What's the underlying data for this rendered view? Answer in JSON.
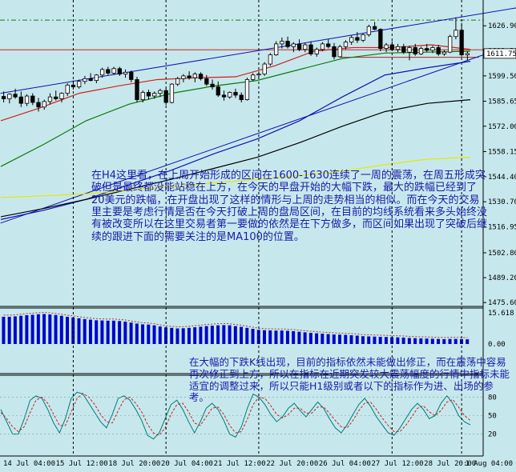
{
  "chart_data": [
    {
      "type": "candlestick",
      "price_axis": {
        "ylim": [
          1473.5,
          1641
        ],
        "ticks": [
          "1626.90",
          "1613.20",
          "1599.50",
          "1585.65",
          "1572.00",
          "1558.15",
          "1544.40",
          "1530.70",
          "1516.95",
          "1502.80",
          "1489.20",
          "1475.60"
        ],
        "current_price": "1611.75"
      },
      "time_axis": {
        "labels": [
          "14 Jul 04:00",
          "15 Jul 12:00",
          "18 Jul 20:00",
          "20 Jul 04:00",
          "21 Jul 12:00",
          "22 Jul 20:00",
          "26 Jul 04:00",
          "27 Jul 12:00",
          "28 Jul 20:00",
          "1 Aug 04:00"
        ]
      },
      "candles": [
        [
          1588.3,
          1591.0,
          1585.0,
          1587.0
        ],
        [
          1587.0,
          1590.0,
          1584.5,
          1589.5
        ],
        [
          1589.5,
          1592.5,
          1587.0,
          1588.0
        ],
        [
          1588.0,
          1591.0,
          1582.5,
          1584.5
        ],
        [
          1584.5,
          1589.5,
          1583.0,
          1588.5
        ],
        [
          1588.5,
          1590.0,
          1583.5,
          1585.0
        ],
        [
          1585.0,
          1587.5,
          1580.0,
          1582.5
        ],
        [
          1582.5,
          1586.5,
          1581.0,
          1585.5
        ],
        [
          1585.5,
          1590.0,
          1584.0,
          1588.0
        ],
        [
          1588.0,
          1591.5,
          1586.0,
          1587.0
        ],
        [
          1587.0,
          1590.5,
          1585.0,
          1590.0
        ],
        [
          1590.0,
          1595.5,
          1588.5,
          1594.5
        ],
        [
          1594.5,
          1597.0,
          1592.0,
          1593.5
        ],
        [
          1593.5,
          1597.5,
          1592.5,
          1596.5
        ],
        [
          1596.5,
          1599.5,
          1595.0,
          1598.0
        ],
        [
          1598.0,
          1601.0,
          1596.5,
          1597.0
        ],
        [
          1597.0,
          1600.5,
          1595.5,
          1600.0
        ],
        [
          1600.0,
          1604.0,
          1598.5,
          1603.0
        ],
        [
          1603.0,
          1604.5,
          1600.0,
          1601.0
        ],
        [
          1601.0,
          1604.5,
          1600.0,
          1603.5
        ],
        [
          1603.5,
          1604.5,
          1599.5,
          1600.5
        ],
        [
          1600.5,
          1603.0,
          1598.5,
          1601.5
        ],
        [
          1601.5,
          1602.5,
          1596.0,
          1597.5
        ],
        [
          1597.5,
          1599.0,
          1585.0,
          1586.5
        ],
        [
          1586.5,
          1591.5,
          1585.0,
          1590.5
        ],
        [
          1590.5,
          1592.0,
          1586.5,
          1588.5
        ],
        [
          1588.5,
          1591.0,
          1587.0,
          1590.0
        ],
        [
          1590.0,
          1592.5,
          1588.0,
          1591.5
        ],
        [
          1591.5,
          1593.0,
          1583.5,
          1585.0
        ],
        [
          1585.0,
          1595.5,
          1584.5,
          1595.0
        ],
        [
          1595.0,
          1599.0,
          1594.0,
          1598.0
        ],
        [
          1598.0,
          1600.5,
          1596.0,
          1599.5
        ],
        [
          1599.5,
          1602.0,
          1597.5,
          1598.5
        ],
        [
          1598.5,
          1601.5,
          1596.0,
          1600.5
        ],
        [
          1600.5,
          1601.5,
          1597.0,
          1598.0
        ],
        [
          1598.0,
          1600.0,
          1594.0,
          1595.0
        ],
        [
          1595.0,
          1597.5,
          1592.0,
          1593.5
        ],
        [
          1593.5,
          1596.5,
          1588.0,
          1589.0
        ],
        [
          1589.0,
          1591.5,
          1586.0,
          1588.0
        ],
        [
          1588.0,
          1591.0,
          1587.0,
          1590.5
        ],
        [
          1590.5,
          1592.5,
          1587.5,
          1589.0
        ],
        [
          1589.0,
          1590.5,
          1585.0,
          1586.5
        ],
        [
          1586.5,
          1598.5,
          1586.0,
          1597.5
        ],
        [
          1597.5,
          1601.0,
          1596.5,
          1600.0
        ],
        [
          1600.0,
          1602.0,
          1598.0,
          1600.5
        ],
        [
          1600.5,
          1607.0,
          1599.5,
          1606.0
        ],
        [
          1606.0,
          1612.0,
          1605.0,
          1611.0
        ],
        [
          1611.0,
          1618.5,
          1610.5,
          1617.0
        ],
        [
          1617.0,
          1620.5,
          1614.5,
          1618.5
        ],
        [
          1618.5,
          1621.0,
          1614.5,
          1615.5
        ],
        [
          1615.5,
          1618.0,
          1612.5,
          1617.0
        ],
        [
          1617.0,
          1619.5,
          1613.0,
          1614.0
        ],
        [
          1614.0,
          1617.5,
          1612.5,
          1616.5
        ],
        [
          1616.5,
          1618.5,
          1610.5,
          1611.5
        ],
        [
          1611.5,
          1615.0,
          1610.0,
          1614.0
        ],
        [
          1614.0,
          1618.0,
          1613.0,
          1617.0
        ],
        [
          1617.0,
          1619.5,
          1614.5,
          1615.5
        ],
        [
          1615.5,
          1617.5,
          1608.5,
          1610.0
        ],
        [
          1610.0,
          1616.5,
          1609.5,
          1615.5
        ],
        [
          1615.5,
          1619.0,
          1614.0,
          1618.0
        ],
        [
          1618.0,
          1621.5,
          1616.5,
          1620.5
        ],
        [
          1620.5,
          1623.5,
          1617.5,
          1619.0
        ],
        [
          1619.0,
          1622.5,
          1618.0,
          1622.0
        ],
        [
          1622.0,
          1627.5,
          1621.0,
          1626.5
        ],
        [
          1626.5,
          1629.0,
          1624.5,
          1625.0
        ],
        [
          1625.0,
          1625.5,
          1613.0,
          1614.5
        ],
        [
          1614.5,
          1617.5,
          1612.5,
          1616.5
        ],
        [
          1616.5,
          1618.5,
          1613.0,
          1614.0
        ],
        [
          1614.0,
          1617.0,
          1612.5,
          1615.5
        ],
        [
          1615.5,
          1617.0,
          1611.5,
          1612.5
        ],
        [
          1612.5,
          1616.0,
          1608.0,
          1615.0
        ],
        [
          1615.0,
          1617.0,
          1610.5,
          1611.5
        ],
        [
          1611.5,
          1615.5,
          1611.0,
          1614.5
        ],
        [
          1614.5,
          1617.0,
          1612.5,
          1613.5
        ],
        [
          1613.5,
          1616.0,
          1612.0,
          1615.0
        ],
        [
          1615.0,
          1616.5,
          1610.5,
          1611.5
        ],
        [
          1611.5,
          1613.5,
          1610.5,
          1612.5
        ],
        [
          1612.5,
          1622.0,
          1612.0,
          1621.0
        ],
        [
          1621.0,
          1631.5,
          1619.5,
          1624.5
        ],
        [
          1624.5,
          1628.5,
          1610.0,
          1611.0
        ],
        [
          1611.0,
          1613.0,
          1608.0,
          1611.75
        ]
      ],
      "moving_averages": [
        {
          "color": "#d81c1c",
          "values": [
            1575.0,
            1582.0,
            1590.0,
            1594.0,
            1597.5,
            1598.5,
            1599.0,
            1605.0,
            1613.0,
            1615.0,
            1615.0,
            1616.5,
            1614.0
          ]
        },
        {
          "color": "#0a7a0a",
          "values": [
            1550.0,
            1562.0,
            1575.0,
            1584.0,
            1590.0,
            1594.0,
            1597.0,
            1603.0,
            1609.0,
            1612.0,
            1612.5,
            1613.0
          ]
        },
        {
          "color": "#1010b8",
          "values": [
            1521.0,
            1526.0,
            1532.0,
            1540.0,
            1548.0,
            1557.0,
            1565.0,
            1575.0,
            1588.0,
            1600.0,
            1604.0,
            1607.5
          ]
        },
        {
          "color": "#000000",
          "values": [
            1522.5,
            1527.0,
            1532.0,
            1537.5,
            1543.0,
            1549.0,
            1555.0,
            1563.0,
            1572.0,
            1580.0,
            1584.5,
            1586.5
          ]
        },
        {
          "color": "#e6e600",
          "values": [
            1533.0,
            1534.0,
            1535.0,
            1537.0,
            1539.0,
            1541.0,
            1543.0,
            1545.0,
            1547.5,
            1551.0,
            1554.0,
            1555.0
          ]
        }
      ],
      "trend_lines": [
        {
          "color": "#1010b8",
          "from": [
            0,
            1590.0
          ],
          "to": [
            110,
            1648.0
          ]
        },
        {
          "color": "#1010b8",
          "from": [
            0,
            1519.0
          ],
          "to": [
            85,
            1613.5
          ]
        }
      ],
      "horizontal_lines": [
        {
          "style": "dash-dot",
          "color": "#1a7a1a",
          "price": 1630.0
        },
        {
          "style": "dash-dot",
          "color": "#cc2222",
          "price": 1642.0
        },
        {
          "style": "solid",
          "color": "#cc2222",
          "price": 1613.8
        },
        {
          "style": "solid",
          "color": "#b82222",
          "price": 1609.7,
          "from_index": 58,
          "to_index": 82
        }
      ],
      "vertical_marker_indices": [
        12,
        28,
        44,
        67,
        79
      ]
    },
    {
      "type": "bar",
      "indicator_axis": {
        "max_label": "15.618",
        "zero_label": "0.00"
      },
      "values": [
        14.0,
        14.0,
        14.2,
        14.5,
        14.8,
        15.0,
        15.3,
        15.4,
        15.2,
        14.9,
        14.5,
        14.0,
        13.6,
        13.2,
        12.8,
        12.5,
        12.2,
        12.1,
        12.0,
        12.0,
        11.8,
        11.5,
        11.0,
        10.5,
        10.1,
        10.0,
        9.6,
        9.0,
        8.5,
        8.3,
        8.0,
        8.1,
        8.3,
        8.6,
        8.9,
        9.2,
        9.4,
        9.6,
        9.7,
        9.6,
        9.2,
        8.8,
        8.3,
        7.8,
        7.3,
        7.1,
        7.0,
        6.9,
        6.9,
        6.8,
        6.6,
        6.3,
        6.0,
        5.7,
        5.5,
        5.3,
        5.1,
        4.9,
        4.8,
        4.7,
        4.5,
        4.3,
        4.0,
        3.9,
        3.8,
        3.7,
        3.6,
        3.5,
        3.4,
        3.3,
        3.1,
        3.0,
        2.9,
        2.8,
        2.7,
        2.6,
        2.5,
        2.6,
        2.6,
        2.5,
        2.4
      ],
      "signal_color": "#c03030"
    },
    {
      "type": "line",
      "indicator_axis": {
        "ticks": [
          "80",
          "50",
          "20"
        ]
      },
      "series": [
        {
          "color": "#007a7a",
          "values": [
            60,
            40,
            20,
            20,
            45,
            75,
            82,
            78,
            60,
            38,
            22,
            45,
            78,
            88,
            85,
            70,
            55,
            40,
            30,
            52,
            78,
            82,
            75,
            60,
            42,
            18,
            12,
            22,
            45,
            68,
            75,
            60,
            40,
            22,
            40,
            62,
            70,
            60,
            42,
            20,
            15,
            32,
            62,
            85,
            80,
            68,
            52,
            40,
            48,
            62,
            70,
            58,
            48,
            60,
            72,
            62,
            45,
            30,
            22,
            35,
            52,
            68,
            78,
            65,
            48,
            35,
            22,
            18,
            30,
            45,
            60,
            70,
            60,
            45,
            50,
            70,
            82,
            70,
            50,
            40,
            35
          ]
        },
        {
          "color": "#cc2020",
          "values": [
            55,
            45,
            32,
            24,
            32,
            55,
            75,
            80,
            70,
            52,
            34,
            34,
            56,
            78,
            86,
            80,
            68,
            52,
            40,
            38,
            58,
            76,
            80,
            70,
            56,
            36,
            22,
            18,
            30,
            52,
            68,
            70,
            56,
            38,
            34,
            48,
            62,
            64,
            52,
            34,
            22,
            24,
            44,
            68,
            80,
            78,
            66,
            52,
            46,
            52,
            62,
            62,
            54,
            54,
            64,
            64,
            54,
            42,
            32,
            30,
            42,
            58,
            70,
            72,
            60,
            46,
            34,
            24,
            24,
            34,
            48,
            62,
            66,
            56,
            50,
            58,
            72,
            76,
            64,
            50,
            42
          ]
        }
      ]
    }
  ],
  "annotations": {
    "upper": "在H4这里看，在上周开始形成的区间在1600-1630连续了一周的震荡，在周五形成突破但是最终都没能站稳在上方，在今天的早盘开始的大幅下跌，最大的跌幅已经到了20美元的跌幅，在开盘出现了这样的情形与上周的走势相当的相似。而在今天的交易里主要是考虑行情是否在今天打破上周的盘局区间，在目前的均线系统看来多头始终没有被改变所以在这里交易者第一要做的依然是在下方做多，而区间如果出现了突破后继续的跟进下面的需要关注的是MA100的位置。",
    "lower": "在大幅的下跌K线出现，目前的指标依然未能做出修正，而在震荡中容易再次修正到上方，所以在指标在近期突发较大震荡幅度的行情中指标未能适宜的调整过来，所以只能H1级别或者以下的指标作为进、出场的参考。"
  }
}
